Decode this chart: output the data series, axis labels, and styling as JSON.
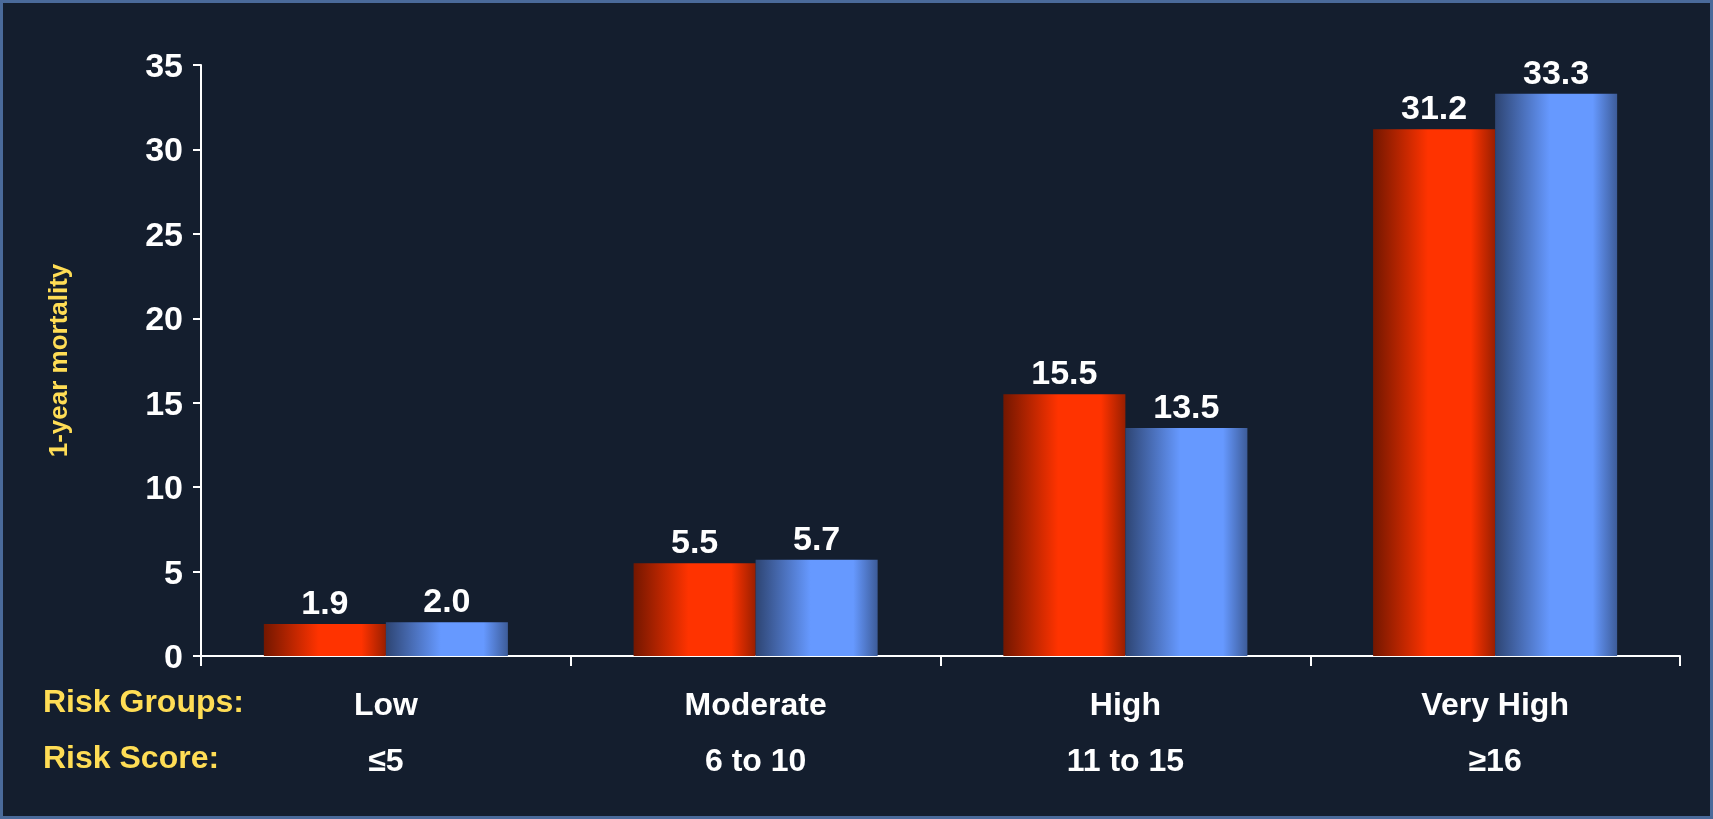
{
  "chart_data": {
    "type": "bar",
    "ylabel": "1-year mortality",
    "categories": [
      "Low\n≤5",
      "Moderate\n6 to 10",
      "High\n11 to 15",
      "Very High\n≥16"
    ],
    "series": [
      {
        "color": "#ff3300",
        "values": [
          1.9,
          5.5,
          15.5,
          31.2
        ],
        "value_labels": [
          "1.9",
          "5.5",
          "15.5",
          "31.2"
        ]
      },
      {
        "color": "#6699ff",
        "values": [
          2.0,
          5.7,
          13.5,
          33.3
        ],
        "value_labels": [
          "2.0",
          "5.7",
          "13.5",
          "33.3"
        ]
      }
    ],
    "ylim": [
      0,
      35
    ],
    "yticks": [
      0,
      5,
      10,
      15,
      20,
      25,
      30,
      35
    ],
    "grid": false,
    "annotations": [
      "Risk Groups:",
      "Risk Score:"
    ]
  }
}
